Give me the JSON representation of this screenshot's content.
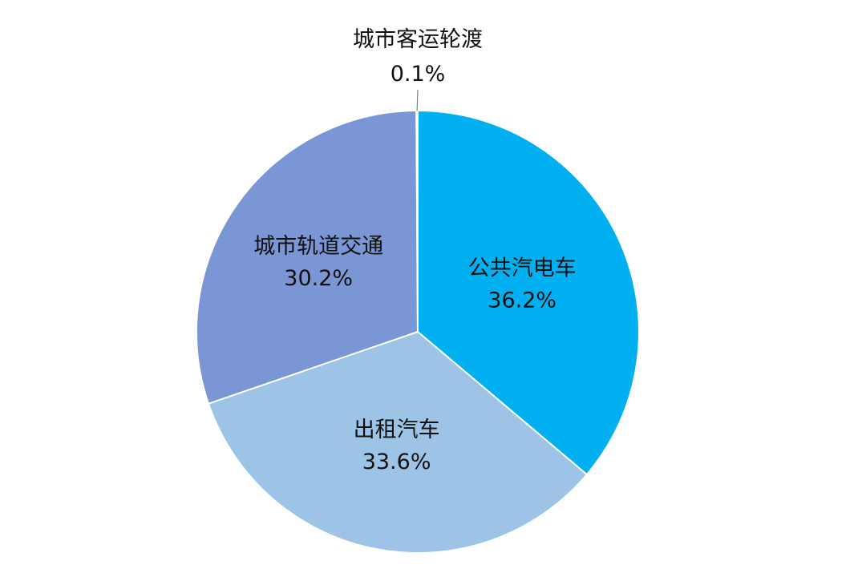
{
  "chart_data": {
    "type": "pie",
    "start_angle_deg": 0,
    "direction": "clockwise",
    "slices": [
      {
        "label": "公共汽电车",
        "value": 36.2,
        "value_label": "36.2%",
        "color": "#00B0F0"
      },
      {
        "label": "出租汽车",
        "value": 33.6,
        "value_label": "33.6%",
        "color": "#9DC3E6"
      },
      {
        "label": "城市轨道交通",
        "value": 30.2,
        "value_label": "30.2%",
        "color": "#7B96D4"
      },
      {
        "label": "城市客运轮渡",
        "value": 0.1,
        "value_label": "0.1%",
        "color": "#5B7BC8"
      }
    ],
    "legend": "none",
    "slice_border_color": "#ffffff",
    "leader_line_color": "#7f7f7f"
  }
}
